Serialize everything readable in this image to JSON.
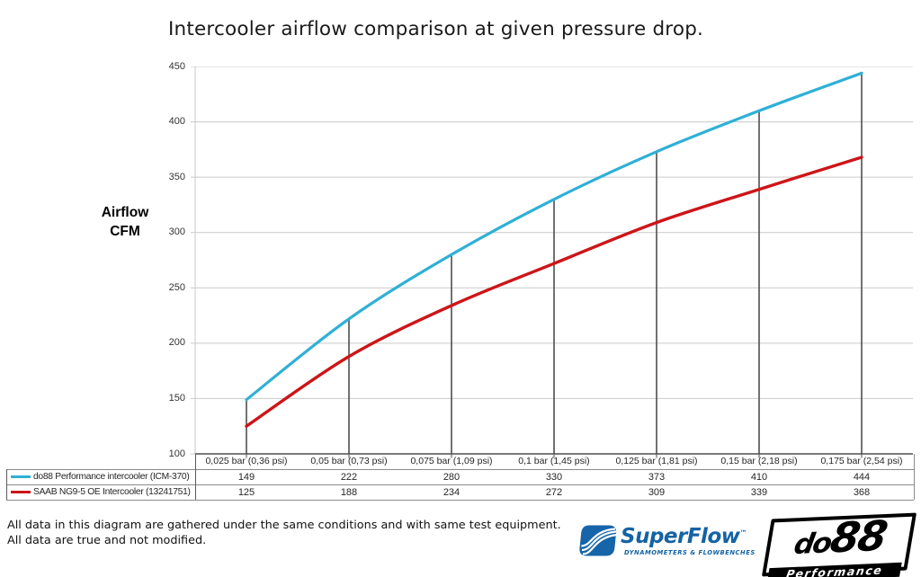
{
  "title": "Intercooler airflow comparison at given pressure drop.",
  "chart_data": {
    "type": "line",
    "title": "Intercooler airflow comparison at given pressure drop.",
    "xlabel": "",
    "ylabel": "Airflow CFM",
    "ylabel_lines": [
      "Airflow",
      "CFM"
    ],
    "ylim": [
      100,
      450
    ],
    "yticks": [
      100,
      150,
      200,
      250,
      300,
      350,
      400,
      450
    ],
    "grid": "horizontal",
    "drop_lines": true,
    "legend_position": "data-table-left",
    "categories": [
      "0,025 bar (0,36 psi)",
      "0,05 bar (0,73 psi)",
      "0,075 bar (1,09 psi)",
      "0,1 bar (1,45 psi)",
      "0,125 bar (1,81 psi)",
      "0,15 bar (2,18 psi)",
      "0,175 bar (2,54 psi)"
    ],
    "series": [
      {
        "name": "do88 Performance intercooler (ICM-370)",
        "color": "#2fb0d6",
        "values": [
          149,
          222,
          280,
          330,
          373,
          410,
          444
        ]
      },
      {
        "name": "SAAB NG9-5 OE Intercooler (13241751)",
        "color": "#cd1518",
        "values": [
          125,
          188,
          234,
          272,
          309,
          339,
          368
        ]
      }
    ]
  },
  "colors": {
    "grid": "#c9c9c9",
    "y_axis": "#c9c9c9",
    "x_axis": "#4f4f4f",
    "drop_line": "#4f4f4f",
    "table_line": "#8a8a8a",
    "table_line_dark": "#5a5a5a",
    "text": "#262626"
  },
  "footer": {
    "note_line1": "All data in this diagram are gathered under the same conditions and with same test equipment.",
    "note_line2": "All data are true and not modified.",
    "superflow": {
      "name": "SuperFlow",
      "tm": "™",
      "tagline": "DYNAMOMETERS & FLOWBENCHES",
      "color": "#1463a4"
    },
    "do88": {
      "name_prefix": "do",
      "name_suffix": "88",
      "tagline": "Performance"
    }
  }
}
